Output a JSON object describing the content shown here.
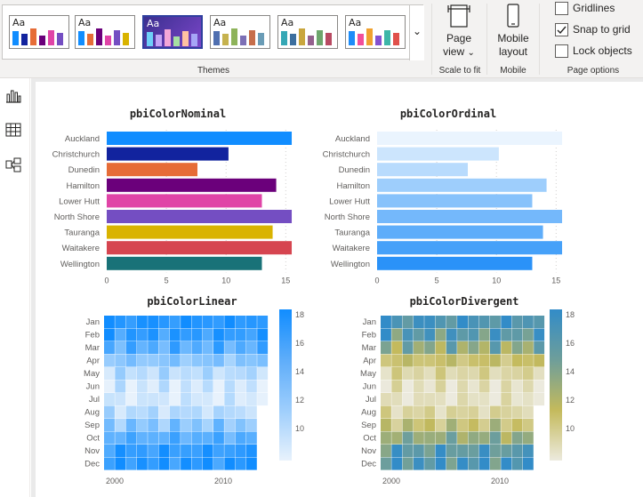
{
  "ribbon": {
    "themes_label": "Themes",
    "theme_thumbs": [
      {
        "aa": "Aa",
        "colors": [
          "#118DFF",
          "#12239E",
          "#E66C37",
          "#6B007B",
          "#E044A7",
          "#744EC2"
        ]
      },
      {
        "aa": "Aa",
        "colors": [
          "#118DFF",
          "#E66C37",
          "#6B007B",
          "#E044A7",
          "#744EC2",
          "#D9B300"
        ]
      },
      {
        "aa": "Aa",
        "colors": [
          "#6ED0F8",
          "#C3A3F5",
          "#F3A6D7",
          "#A6E0A2",
          "#FFC2A2",
          "#A6A6F6"
        ]
      },
      {
        "aa": "Aa",
        "colors": [
          "#4F6FB0",
          "#C6B24E",
          "#8EB35A",
          "#7C6FB5",
          "#C66E4B",
          "#6A9CB6"
        ]
      },
      {
        "aa": "Aa",
        "colors": [
          "#35A7B5",
          "#3C6E9E",
          "#C9A63E",
          "#94618E",
          "#6EA66D",
          "#B84A62"
        ]
      },
      {
        "aa": "Aa",
        "colors": [
          "#1D8CF8",
          "#F24E9A",
          "#F0A12E",
          "#8451D0",
          "#3DB6A8",
          "#E0514B"
        ]
      }
    ],
    "page_view": {
      "line1": "Page",
      "line2": "view",
      "caret": "⌄"
    },
    "scale_label": "Scale to fit",
    "mobile_layout": {
      "line1": "Mobile",
      "line2": "layout"
    },
    "mobile_label": "Mobile",
    "page_options_label": "Page options",
    "options": [
      {
        "label": "Gridlines",
        "checked": false
      },
      {
        "label": "Snap to grid",
        "checked": true
      },
      {
        "label": "Lock objects",
        "checked": false
      }
    ],
    "more_caret": "⌄"
  },
  "charts": {
    "nominal": {
      "title": "pbiColorNominal",
      "categories": [
        "Auckland",
        "Christchurch",
        "Dunedin",
        "Hamilton",
        "Lower Hutt",
        "North Shore",
        "Tauranga",
        "Waitakere",
        "Wellington"
      ],
      "values": [
        15.5,
        10.2,
        7.6,
        14.2,
        13.0,
        15.5,
        13.9,
        15.5,
        13.0
      ],
      "colors": [
        "#118DFF",
        "#12239E",
        "#E66C37",
        "#6B007B",
        "#E044A7",
        "#744EC2",
        "#D9B300",
        "#D64550",
        "#197278"
      ],
      "xticks": [
        "0",
        "5",
        "10",
        "15"
      ]
    },
    "ordinal": {
      "title": "pbiColorOrdinal",
      "categories": [
        "Auckland",
        "Christchurch",
        "Dunedin",
        "Hamilton",
        "Lower Hutt",
        "North Shore",
        "Tauranga",
        "Waitakere",
        "Wellington"
      ],
      "values": [
        15.5,
        10.2,
        7.6,
        14.2,
        13.0,
        15.5,
        13.9,
        15.5,
        13.0
      ],
      "colors": [
        "#EAF4FE",
        "#CCE5FD",
        "#B8DBFD",
        "#9ECEFC",
        "#87C2FB",
        "#74B8FB",
        "#5EADFA",
        "#46A1F9",
        "#2A92F8"
      ],
      "xticks": [
        "0",
        "5",
        "10",
        "15"
      ]
    },
    "linear": {
      "title": "pbiColorLinear",
      "months": [
        "Jan",
        "Feb",
        "Mar",
        "Apr",
        "May",
        "Jun",
        "Jul",
        "Aug",
        "Sep",
        "Oct",
        "Nov",
        "Dec"
      ],
      "xticks": [
        "2000",
        "2010"
      ],
      "legend_ticks": [
        "18",
        "16",
        "14",
        "12",
        "10"
      ]
    },
    "divergent": {
      "title": "pbiColorDivergent",
      "months": [
        "Jan",
        "Feb",
        "Mar",
        "Apr",
        "May",
        "Jun",
        "Jul",
        "Aug",
        "Sep",
        "Oct",
        "Nov",
        "Dec"
      ],
      "xticks": [
        "2000",
        "2010"
      ],
      "legend_ticks": [
        "18",
        "16",
        "14",
        "12",
        "10"
      ]
    }
  }
}
